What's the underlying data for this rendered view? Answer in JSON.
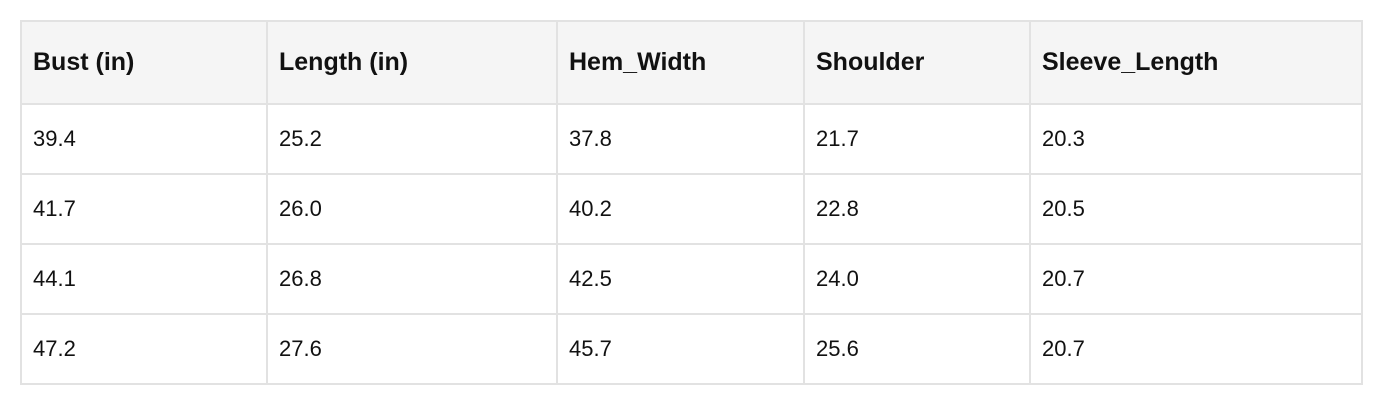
{
  "table": {
    "header": [
      "Bust (in)",
      "Length (in)",
      "Hem_Width",
      "Shoulder",
      "Sleeve_Length"
    ],
    "rows": [
      [
        "39.4",
        "25.2",
        "37.8",
        "21.7",
        "20.3"
      ],
      [
        "41.7",
        "26.0",
        "40.2",
        "22.8",
        "20.5"
      ],
      [
        "44.1",
        "26.8",
        "42.5",
        "24.0",
        "20.7"
      ],
      [
        "47.2",
        "27.6",
        "45.7",
        "25.6",
        "20.7"
      ]
    ]
  }
}
